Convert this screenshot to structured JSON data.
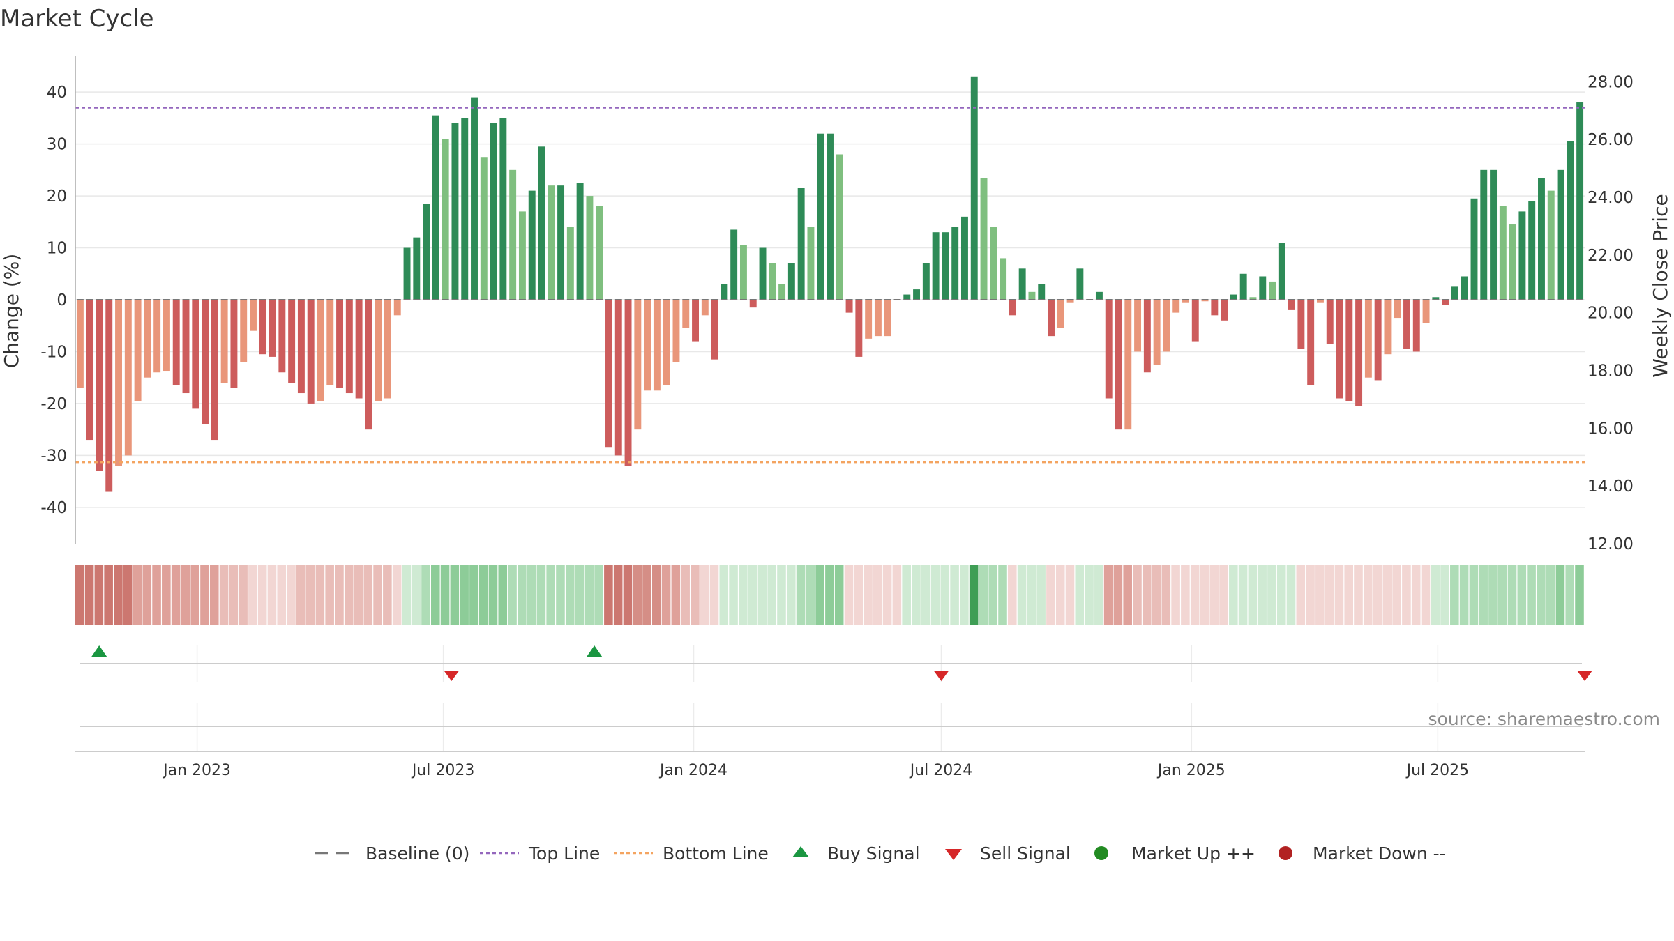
{
  "chart_data": {
    "type": "bar",
    "title": "Market Cycle",
    "ylabel_left": "Change (%)",
    "ylabel_right": "Weekly Close Price",
    "ylim_left": [
      -47,
      47
    ],
    "ylim_right": [
      12,
      28.9
    ],
    "yticks_left": [
      40,
      30,
      20,
      10,
      0,
      -10,
      -20,
      -30,
      -40
    ],
    "yticks_right": [
      "28.00",
      "26.00",
      "24.00",
      "22.00",
      "20.00",
      "18.00",
      "16.00",
      "14.00",
      "12.00"
    ],
    "top_line": 37,
    "bottom_line": -31.3,
    "x_start": "2022-10-07",
    "x_end": "2025-10-17",
    "date_ticks": [
      {
        "date": "2023-01-01",
        "label": "Jan 2023"
      },
      {
        "date": "2023-07-01",
        "label": "Jul 2023"
      },
      {
        "date": "2024-01-01",
        "label": "Jan 2024"
      },
      {
        "date": "2024-07-01",
        "label": "Jul 2024"
      },
      {
        "date": "2025-01-01",
        "label": "Jan 2025"
      },
      {
        "date": "2025-07-01",
        "label": "Jul 2025"
      }
    ],
    "change_values": [
      -17,
      -27,
      -33,
      -37,
      -32,
      -30,
      -19.5,
      -15,
      -14,
      -13.7,
      -16.5,
      -18,
      -21,
      -24,
      -27,
      -16,
      -17,
      -12,
      -6,
      -10.5,
      -11,
      -14,
      -16,
      -18,
      -20,
      -19.5,
      -16.5,
      -17,
      -18,
      -19,
      -25,
      -19.5,
      -19,
      -3,
      10,
      12,
      18.5,
      35.5,
      31,
      34,
      35,
      39,
      27.5,
      34,
      35,
      25,
      17,
      21,
      29.5,
      22,
      22,
      14,
      22.5,
      20,
      18,
      -28.5,
      -30,
      -32,
      -25,
      -17.5,
      -17.5,
      -16.5,
      -12,
      -5.5,
      -8,
      -3,
      -11.5,
      3,
      13.5,
      10.5,
      -1.5,
      10,
      7,
      3,
      7,
      21.5,
      14,
      32,
      32,
      28,
      -2.5,
      -11,
      -7.5,
      -7,
      -7,
      0,
      1,
      2,
      7,
      13,
      13,
      14,
      16,
      43,
      23.5,
      14,
      8,
      -3,
      6,
      1.5,
      3,
      -7,
      -5.5,
      -0.5,
      6,
      0,
      1.5,
      -19,
      -25,
      -25,
      -10,
      -14,
      -12.5,
      -10,
      -2.5,
      -0.5,
      -8,
      -0.3,
      -3,
      -4,
      1,
      5,
      0.5,
      4.5,
      3.5,
      11,
      -2,
      -9.5,
      -16.5,
      -0.5,
      -8.5,
      -19,
      -19.5,
      -20.5,
      -15,
      -15.5,
      -10.5,
      -3.5,
      -9.5,
      -10,
      -4.5,
      0.5,
      -1,
      2.5,
      4.5,
      19.5,
      25,
      25,
      18,
      14.5,
      17,
      19,
      23.5,
      21,
      25,
      30.5,
      38
    ],
    "strip_intensities": [
      5,
      5,
      5,
      5,
      5,
      5,
      3,
      3,
      3,
      3,
      3,
      3,
      3,
      3,
      3,
      2,
      2,
      2,
      1,
      1,
      1,
      1,
      1,
      2,
      2,
      2,
      2,
      2,
      2,
      2,
      2,
      2,
      2,
      1,
      -1,
      -1,
      -2,
      -3,
      -3,
      -3,
      -3,
      -3,
      -3,
      -3,
      -3,
      -2,
      -2,
      -2,
      -2,
      -2,
      -2,
      -2,
      -2,
      -2,
      -2,
      5,
      5,
      5,
      4,
      4,
      4,
      3,
      3,
      2,
      2,
      1,
      1,
      -1,
      -1,
      -1,
      -1,
      -1,
      -1,
      -1,
      -1,
      -2,
      -2,
      -3,
      -3,
      -3,
      1,
      1,
      1,
      1,
      1,
      1,
      -1,
      -1,
      -1,
      -1,
      -1,
      -1,
      -1,
      -5,
      -2,
      -2,
      -2,
      1,
      -1,
      -1,
      -1,
      1,
      1,
      1,
      -1,
      -1,
      -1,
      3,
      3,
      3,
      2,
      2,
      2,
      2,
      1,
      1,
      1,
      1,
      1,
      1,
      -1,
      -1,
      -1,
      -1,
      -1,
      -1,
      -1,
      1,
      1,
      1,
      1,
      1,
      1,
      1,
      1,
      1,
      1,
      1,
      1,
      1,
      1,
      -1,
      -1,
      -2,
      -2,
      -2,
      -2,
      -2,
      -2,
      -2,
      -2,
      -2,
      -2,
      -2,
      -3,
      -2,
      -3
    ],
    "signals": [
      {
        "type": "buy",
        "date": "2022-10-21"
      },
      {
        "type": "sell",
        "date": "2023-07-07"
      },
      {
        "type": "buy",
        "date": "2023-10-20"
      },
      {
        "type": "sell",
        "date": "2024-07-01"
      },
      {
        "type": "sell",
        "date": "2025-10-17"
      }
    ],
    "legend": [
      {
        "key": "baseline",
        "label": "Baseline (0)"
      },
      {
        "key": "top",
        "label": "Top Line"
      },
      {
        "key": "bottom",
        "label": "Bottom Line"
      },
      {
        "key": "buy",
        "label": "Buy Signal"
      },
      {
        "key": "sell",
        "label": "Sell Signal"
      },
      {
        "key": "up",
        "label": "Market Up ++"
      },
      {
        "key": "down",
        "label": "Market Down --"
      }
    ],
    "source": "source: sharemaestro.com",
    "colors": {
      "bar_dark_green": "#2e8b57",
      "bar_light_green": "#7fbf7f",
      "bar_dark_red": "#cd5c5c",
      "bar_light_red": "#e9967a",
      "top_line": "#9467bd",
      "bottom_line": "#f4a460",
      "baseline": "#777777",
      "buy": "#1a9641",
      "sell": "#d62728",
      "market_up": "#228b22",
      "market_down": "#b22222"
    }
  }
}
